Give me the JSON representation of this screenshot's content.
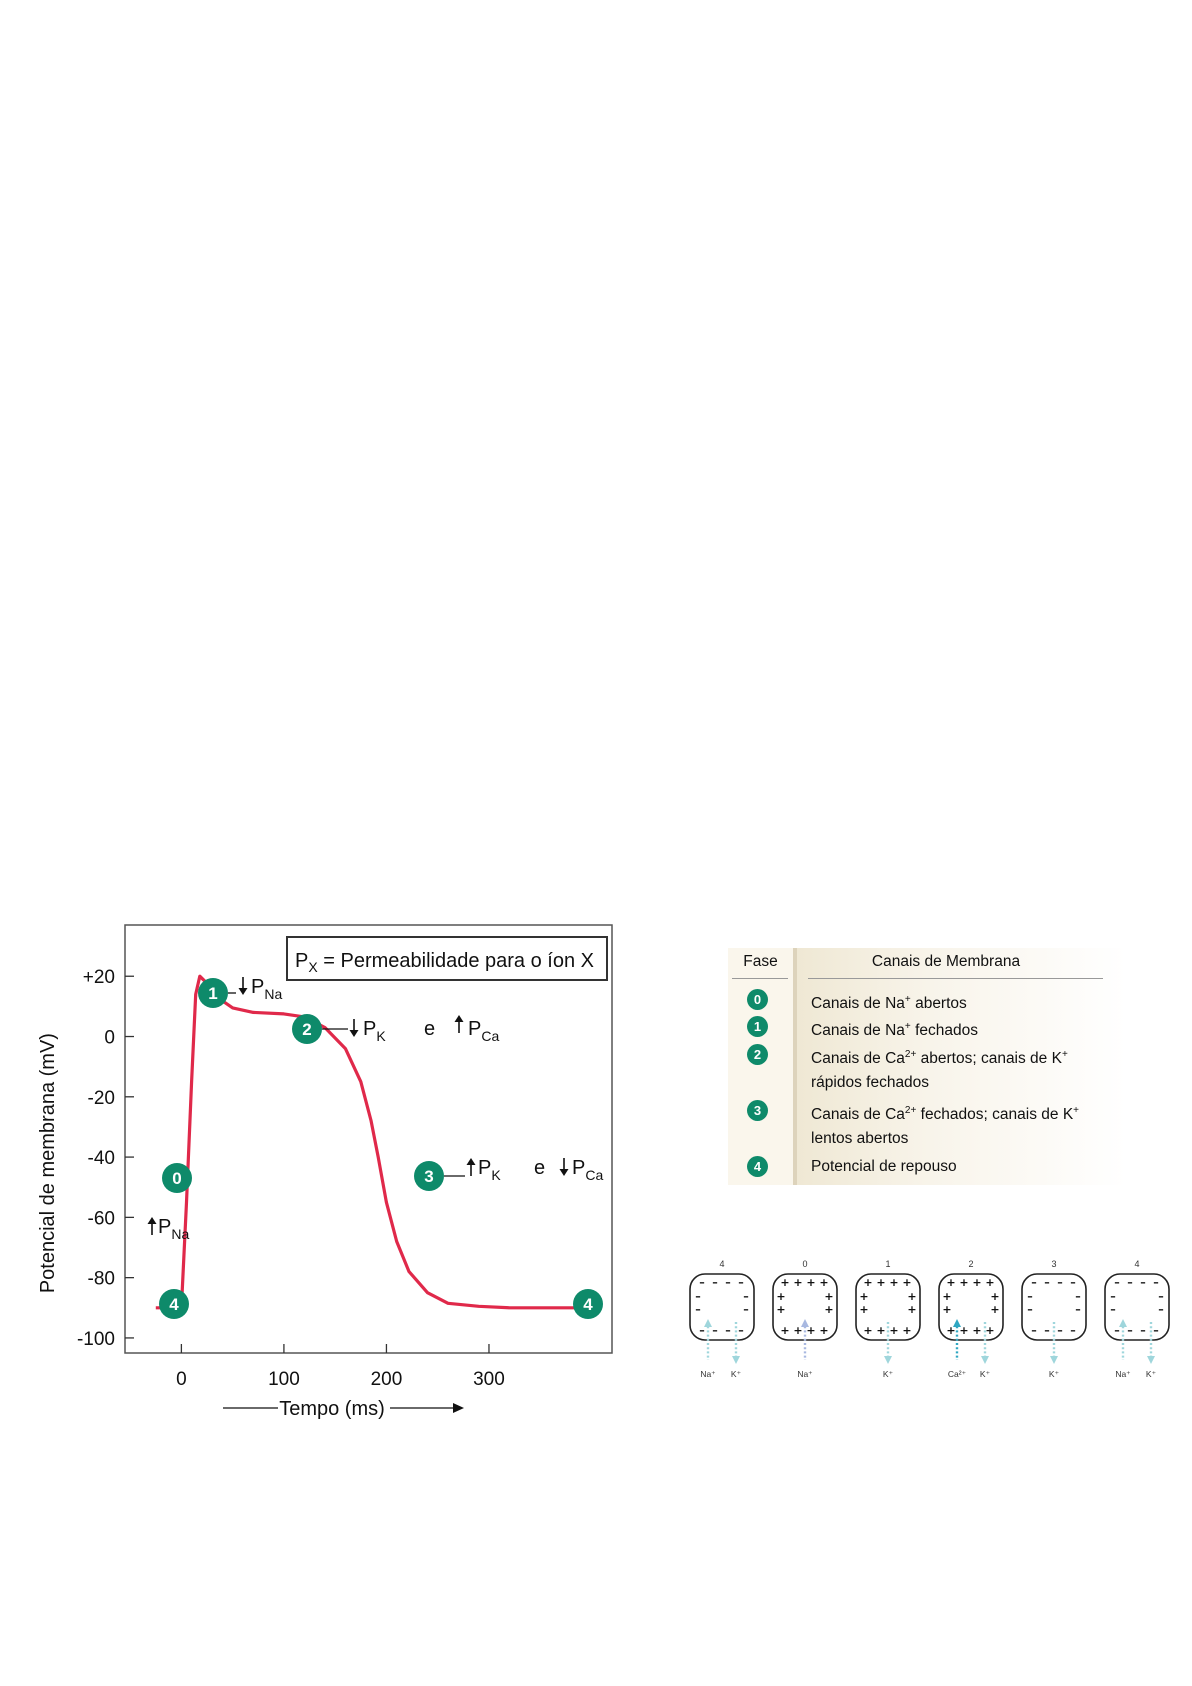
{
  "chart_data": {
    "type": "line",
    "title": "",
    "xlabel": "Tempo (ms)",
    "ylabel": "Potencial de membrana (mV)",
    "xlim": [
      -55,
      420
    ],
    "ylim": [
      -105,
      37
    ],
    "x_ticks": [
      0,
      100,
      200,
      300
    ],
    "x_tick_labels": [
      "0",
      "100",
      "200",
      "300"
    ],
    "y_ticks": [
      20,
      0,
      -20,
      -40,
      -60,
      -80,
      -100
    ],
    "y_tick_labels": [
      "+20",
      "0",
      "-20",
      "-40",
      "-60",
      "-80",
      "-100"
    ],
    "grid": false,
    "series": [
      {
        "color": "#e0294a",
        "points": [
          [
            -25,
            -90
          ],
          [
            0,
            -90
          ],
          [
            5,
            -55
          ],
          [
            10,
            -15
          ],
          [
            14,
            14
          ],
          [
            18,
            20
          ],
          [
            24,
            18
          ],
          [
            35,
            13
          ],
          [
            50,
            9.5
          ],
          [
            70,
            8
          ],
          [
            100,
            7.5
          ],
          [
            120,
            6.5
          ],
          [
            140,
            3
          ],
          [
            160,
            -4
          ],
          [
            175,
            -15
          ],
          [
            185,
            -28
          ],
          [
            192,
            -40
          ],
          [
            200,
            -55
          ],
          [
            210,
            -68
          ],
          [
            222,
            -78
          ],
          [
            240,
            -85
          ],
          [
            260,
            -88.5
          ],
          [
            290,
            -89.5
          ],
          [
            320,
            -90
          ],
          [
            384,
            -90
          ]
        ]
      }
    ],
    "legend_box": {
      "symbol": "P",
      "symbol_sub": "X",
      "text": " = Permeabilidade para o íon X"
    },
    "annotations": [
      {
        "badge": "1",
        "arrow": "down",
        "symbol": "P",
        "sub": "Na"
      },
      {
        "badge": "2",
        "parts": [
          {
            "arrow": "down",
            "symbol": "P",
            "sub": "K"
          },
          {
            "text": "e"
          },
          {
            "arrow": "up",
            "symbol": "P",
            "sub": "Ca"
          }
        ]
      },
      {
        "badge": "3",
        "parts": [
          {
            "arrow": "up",
            "symbol": "P",
            "sub": "K"
          },
          {
            "text": "e"
          },
          {
            "arrow": "down",
            "symbol": "P",
            "sub": "Ca"
          }
        ]
      },
      {
        "badge": "0",
        "arrow": "up",
        "symbol": "P",
        "sub": "Na"
      },
      {
        "badge": "4"
      },
      {
        "badge": "4"
      }
    ],
    "colors": {
      "curve": "#e0294a",
      "badge": "#0e8a6a",
      "frame": "#555555"
    }
  },
  "table": {
    "header_fase": "Fase",
    "header_canais": "Canais de Membrana",
    "rows": [
      {
        "fase": "0",
        "lines": [
          {
            "html_parts": [
              "Canais de Na",
              "+",
              " abertos"
            ]
          }
        ]
      },
      {
        "fase": "1",
        "lines": [
          {
            "html_parts": [
              "Canais de Na",
              "+",
              " fechados"
            ]
          }
        ]
      },
      {
        "fase": "2",
        "lines": [
          {
            "html_parts": [
              "Canais de Ca",
              "2+",
              "  abertos; canais de K",
              "+",
              ""
            ]
          },
          {
            "html_parts": [
              "rápidos fechados"
            ]
          }
        ]
      },
      {
        "fase": "3",
        "lines": [
          {
            "html_parts": [
              "Canais de Ca",
              "2+",
              " fechados; canais de K",
              "+",
              ""
            ]
          },
          {
            "html_parts": [
              "lentos abertos"
            ]
          }
        ]
      },
      {
        "fase": "4",
        "lines": [
          {
            "html_parts": [
              "Potencial de repouso"
            ]
          }
        ]
      }
    ]
  },
  "cells": [
    {
      "phase": "4",
      "charges": "negative",
      "ions": [
        {
          "label": "Na⁺",
          "dir": "in",
          "color": "#9fd6dc"
        },
        {
          "label": "K⁺",
          "dir": "out",
          "color": "#9fd6dc"
        }
      ]
    },
    {
      "phase": "0",
      "charges": "positive",
      "ions": [
        {
          "label": "Na⁺",
          "dir": "in",
          "color": "#a8b8e0"
        }
      ]
    },
    {
      "phase": "1",
      "charges": "positive",
      "ions": [
        {
          "label": "K⁺",
          "dir": "out",
          "color": "#9fd6dc"
        }
      ]
    },
    {
      "phase": "2",
      "charges": "positive",
      "ions": [
        {
          "label": "Ca²⁺",
          "dir": "in",
          "color": "#2fa7c2"
        },
        {
          "label": "K⁺",
          "dir": "out",
          "color": "#9fd6dc"
        }
      ]
    },
    {
      "phase": "3",
      "charges": "negative",
      "ions": [
        {
          "label": "K⁺",
          "dir": "out",
          "color": "#9fd6dc"
        }
      ]
    },
    {
      "phase": "4",
      "charges": "negative",
      "ions": [
        {
          "label": "Na⁺",
          "dir": "in",
          "color": "#9fd6dc"
        },
        {
          "label": "K⁺",
          "dir": "out",
          "color": "#9fd6dc"
        }
      ]
    }
  ]
}
